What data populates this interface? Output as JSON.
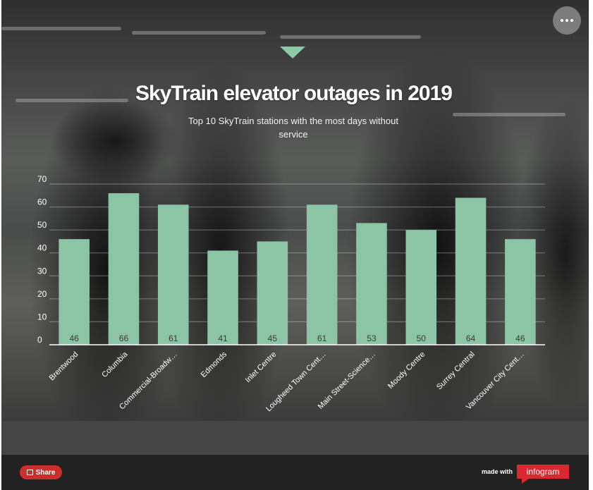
{
  "header": {
    "title": "SkyTrain elevator outages in 2019",
    "subtitle": "Top 10 SkyTrain stations with the most days without service"
  },
  "controls": {
    "more_icon": "more-horizontal-icon",
    "expand_icon": "chevron-down-icon"
  },
  "footer": {
    "share_label": "Share",
    "made_with": "made with",
    "brand": "infogram"
  },
  "colors": {
    "bar": "#8cc4a6",
    "accent": "#d9282f"
  },
  "chart_data": {
    "type": "bar",
    "title": "SkyTrain elevator outages in 2019",
    "subtitle": "Top 10 SkyTrain stations with the most days without service",
    "categories": [
      "Brentwood",
      "Columbia",
      "Commercial-Broadw…",
      "Edmonds",
      "Inlet Centre",
      "Lougheed Town Cent…",
      "Main Street-Science…",
      "Moody Centre",
      "Surrey Central",
      "Vancouver City Cent…"
    ],
    "values": [
      46,
      66,
      61,
      41,
      45,
      61,
      53,
      50,
      64,
      46
    ],
    "yticks": [
      0,
      10,
      20,
      30,
      40,
      50,
      60,
      70
    ],
    "ylim": [
      0,
      70
    ],
    "grid": true,
    "data_labels": true
  }
}
